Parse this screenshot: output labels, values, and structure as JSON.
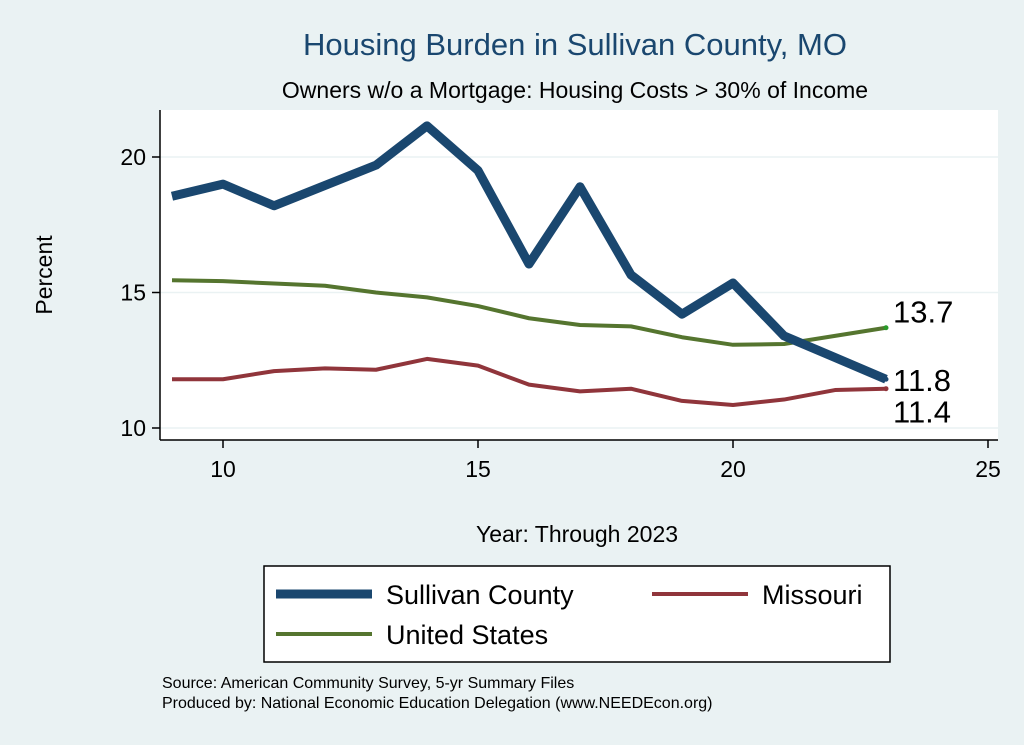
{
  "chart_data": {
    "type": "line",
    "title": "Housing Burden in Sullivan County, MO",
    "subtitle": "Owners w/o a Mortgage: Housing Costs > 30% of Income",
    "xlabel": "Year: Through 2023",
    "ylabel": "Percent",
    "xlim": [
      8.8,
      25.4
    ],
    "ylim": [
      9.5,
      21.8
    ],
    "xticks": [
      10,
      15,
      20,
      25
    ],
    "yticks": [
      10,
      15,
      20
    ],
    "grid": true,
    "legend_position": "bottom",
    "x": [
      9,
      10,
      11,
      12,
      13,
      14,
      15,
      16,
      17,
      18,
      19,
      20,
      21,
      22,
      23
    ],
    "series": [
      {
        "name": "Sullivan County",
        "color": "#1a476f",
        "width": 9,
        "values": [
          18.55,
          19.0,
          18.2,
          18.95,
          19.7,
          21.15,
          19.5,
          16.05,
          18.9,
          15.65,
          14.2,
          15.35,
          13.4,
          12.6,
          11.8
        ],
        "end_label": "11.8"
      },
      {
        "name": "Missouri",
        "color": "#90353b",
        "width": 4,
        "values": [
          11.8,
          11.8,
          12.1,
          12.2,
          12.15,
          12.55,
          12.3,
          11.6,
          11.35,
          11.45,
          11.0,
          10.85,
          11.05,
          11.4,
          11.45
        ],
        "end_label": "11.4"
      },
      {
        "name": "United States",
        "color": "#55752f",
        "width": 4,
        "values": [
          15.45,
          15.42,
          15.33,
          15.25,
          15.0,
          14.82,
          14.5,
          14.05,
          13.8,
          13.75,
          13.35,
          13.07,
          13.1,
          13.4,
          13.7
        ],
        "end_label": "13.7"
      }
    ],
    "source_note": "Source: American Community Survey, 5-yr Summary Files",
    "producer_note": "Produced by: National Economic Education Delegation (www.NEEDEcon.org)"
  }
}
